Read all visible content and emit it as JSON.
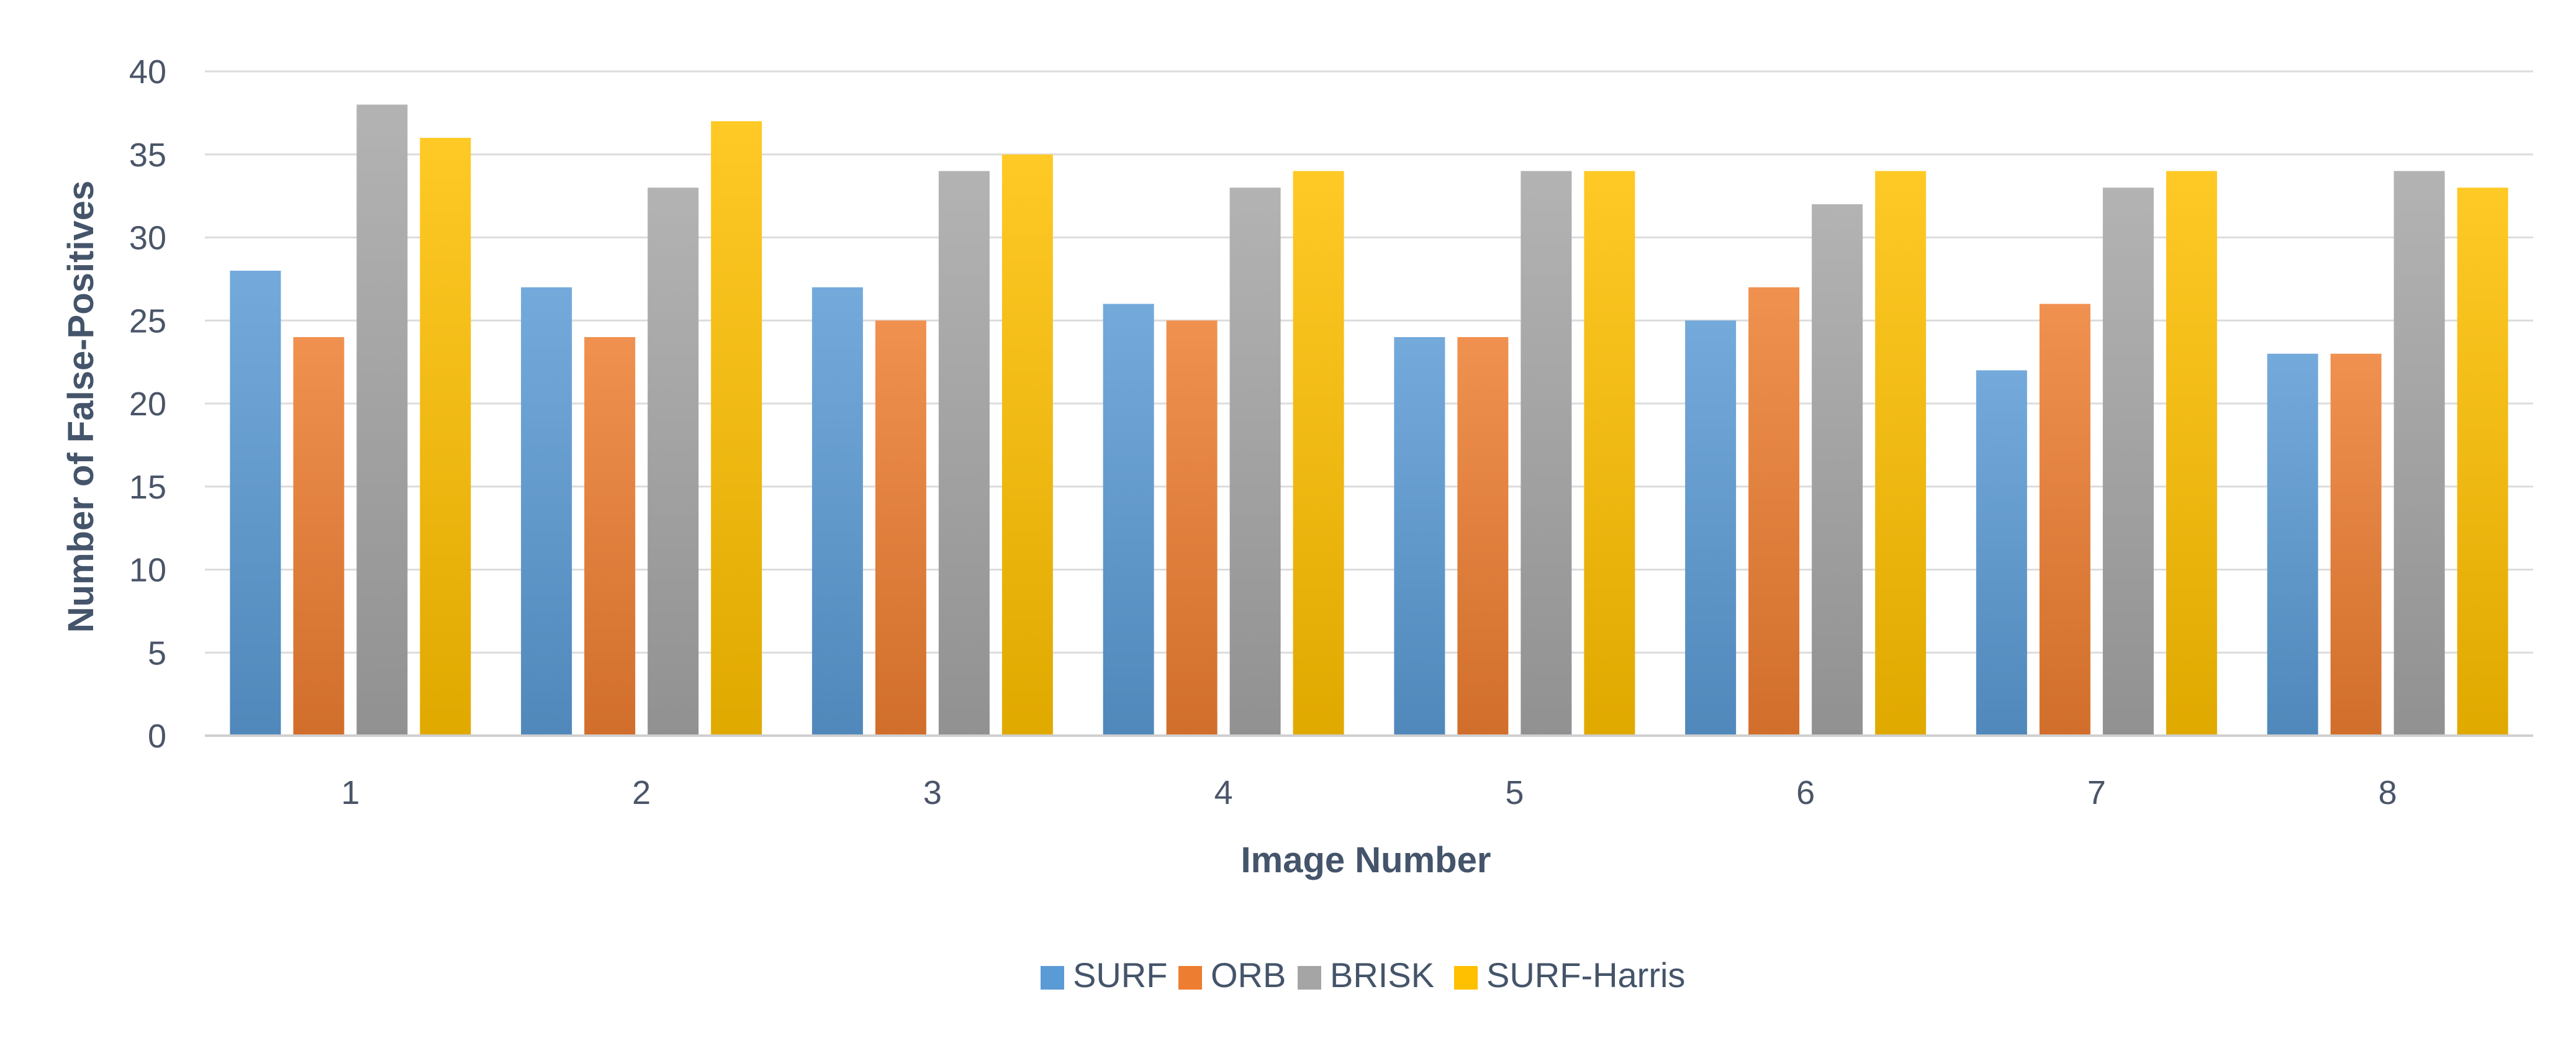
{
  "chart_data": {
    "type": "bar",
    "title": "",
    "xlabel": "Image Number",
    "ylabel": "Number of False-Positives",
    "categories": [
      "1",
      "2",
      "3",
      "4",
      "5",
      "6",
      "7",
      "8"
    ],
    "ylim": [
      0,
      40
    ],
    "yticks": [
      0,
      5,
      10,
      15,
      20,
      25,
      30,
      35,
      40
    ],
    "grid": true,
    "legend_position": "bottom",
    "series": [
      {
        "name": "SURF",
        "color": "#5b9bd5",
        "values": [
          28,
          27,
          27,
          26,
          24,
          25,
          22,
          23
        ]
      },
      {
        "name": "ORB",
        "color": "#ed7d31",
        "values": [
          24,
          24,
          25,
          25,
          24,
          27,
          26,
          23
        ]
      },
      {
        "name": "BRISK",
        "color": "#a5a5a5",
        "values": [
          38,
          33,
          34,
          33,
          34,
          32,
          33,
          34
        ]
      },
      {
        "name": "SURF-Harris",
        "color": "#ffc000",
        "values": [
          36,
          37,
          35,
          34,
          34,
          34,
          34,
          33
        ]
      }
    ]
  }
}
